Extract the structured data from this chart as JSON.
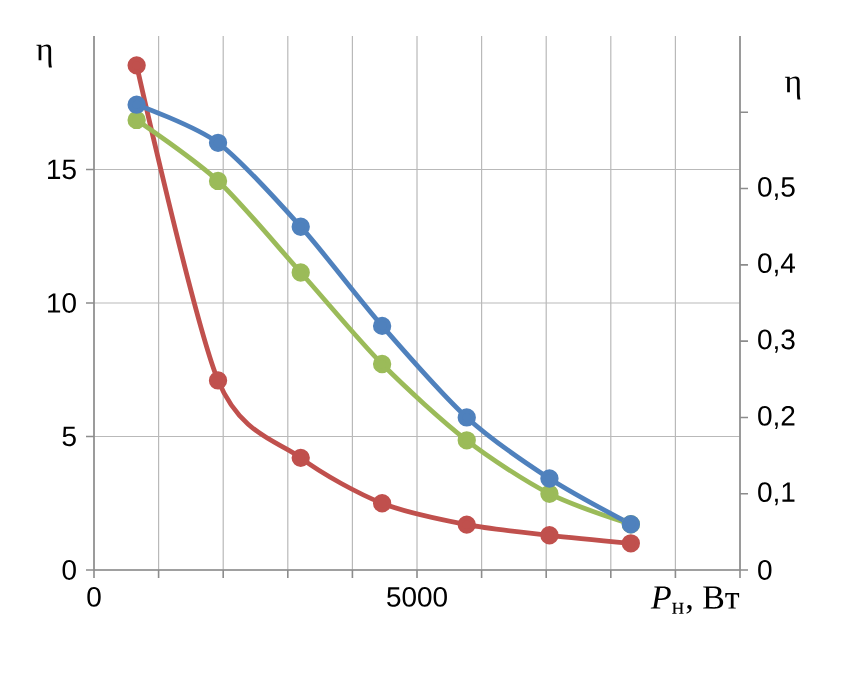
{
  "chart_data": {
    "type": "line",
    "xlabel": "*P*$_{н}$, Вт",
    "ylabel": "η",
    "y2label": "η",
    "xlim": [
      0,
      10000
    ],
    "xticks": [
      0,
      {
        "value": 1000,
        "label": null
      },
      {
        "value": 2000,
        "label": null
      },
      {
        "value": 3000,
        "label": null
      },
      {
        "value": 4000,
        "label": null
      },
      5000,
      {
        "value": 6000,
        "label": null
      },
      {
        "value": 7000,
        "label": null
      },
      {
        "value": 8000,
        "label": null
      },
      {
        "value": 9000,
        "label": null
      },
      {
        "value": 10000,
        "label": null
      }
    ],
    "ylim": [
      0,
      20
    ],
    "yticks": [
      0,
      5,
      10,
      15
    ],
    "y2lim": [
      0,
      0.7
    ],
    "y2ticks": [
      0,
      {
        "value": 0.1,
        "label": "0,1"
      },
      {
        "value": 0.2,
        "label": "0,2"
      },
      {
        "value": 0.3,
        "label": "0,3"
      },
      {
        "value": 0.4,
        "label": "0,4"
      },
      {
        "value": 0.5,
        "label": "0,5"
      },
      {
        "value": 0.6,
        "label": null
      }
    ],
    "grid": true,
    "marker": "circle",
    "line_style": "solid",
    "x": [
      660,
      1920,
      3200,
      4460,
      5770,
      7050,
      8310
    ],
    "series": [
      {
        "color": "#9bbb59",
        "axis": "y2",
        "values": [
          0.59,
          0.51,
          0.39,
          0.27,
          0.17,
          0.1,
          0.06
        ]
      },
      {
        "color": "#4f81bd",
        "axis": "y2",
        "values": [
          0.61,
          0.56,
          0.45,
          0.32,
          0.2,
          0.12,
          0.06
        ]
      },
      {
        "color": "#c0504d",
        "values": [
          18.9,
          7.1,
          4.2,
          2.5,
          1.7,
          1.3,
          1.0
        ]
      }
    ]
  }
}
